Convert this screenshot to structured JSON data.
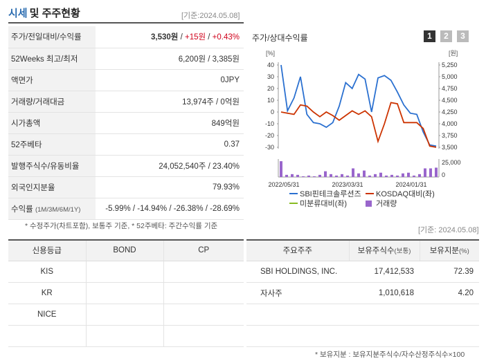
{
  "header": {
    "title_blue": "시세",
    "title_rest": "및 주주현황",
    "date": "[기준:2024.05.08]"
  },
  "price_table": {
    "price_label": "주가/전일대비/수익률",
    "price": "3,530원",
    "change": "+15원",
    "change_pct": "+0.43%",
    "week52_label": "52Weeks 최고/최저",
    "week52": "6,200원 / 3,385원",
    "par_label": "액면가",
    "par": "0JPY",
    "volume_label": "거래량/거래대금",
    "volume": "13,974주 / 0억원",
    "mcap_label": "시가총액",
    "mcap": "849억원",
    "beta_label": "52주베타",
    "beta": "0.37",
    "shares_label": "발행주식수/유동비율",
    "shares": "24,052,540주 / 23.40%",
    "foreign_label": "외국인지분율",
    "foreign": "79.93%",
    "return_label": "수익률",
    "return_sub": "(1M/3M/6M/1Y)",
    "r1m": "-5.99%",
    "r3m": "-14.94%",
    "r6m": "-26.38%",
    "r1y": "-28.69%",
    "sep": " / "
  },
  "note_left": "* 수정주가(차트포함), 보통주 기준, * 52주베타: 주간수익률 기준",
  "chart": {
    "title": "주가/상대수익률",
    "pages": [
      "1",
      "2",
      "3"
    ],
    "active_page": 0,
    "left_unit": "[%]",
    "right_unit": "[원]",
    "vol_label": "25,000",
    "vol_zero": "0",
    "legend": [
      "SBI핀테크솔루션즈",
      "KOSDAQ대비(좌)",
      "미분류대비(좌)",
      "거래량"
    ],
    "colors": {
      "stock": "#2a70d0",
      "kosdaq": "#cc3300",
      "sector": "#88bb22",
      "volume": "#9966cc"
    }
  },
  "chart_data": {
    "type": "line",
    "x_labels": [
      "2022/05/31",
      "2023/03/31",
      "2024/01/31"
    ],
    "left_axis": {
      "ticks": [
        40,
        30,
        20,
        10,
        0,
        -10,
        -20,
        -30
      ],
      "ylim": [
        -30,
        40
      ]
    },
    "right_axis": {
      "ticks": [
        "5,250",
        "5,000",
        "4,750",
        "4,500",
        "4,250",
        "4,000",
        "3,750",
        "3,500"
      ],
      "ylim": [
        3500,
        5250
      ]
    },
    "series": [
      {
        "name": "SBI핀테크솔루션즈",
        "values": [
          40,
          1,
          12,
          30,
          -2,
          -9,
          -10,
          -13,
          -9,
          5,
          25,
          20,
          32,
          28,
          0,
          29,
          31,
          27,
          17,
          6,
          -1,
          -2,
          -17,
          -28,
          -29
        ]
      },
      {
        "name": "KOSDAQ대비(좌)",
        "values": [
          0,
          -1,
          -2,
          6,
          5,
          0,
          -4,
          0,
          -3,
          -7,
          -3,
          1,
          -2,
          1,
          -4,
          -25,
          -10,
          8,
          7,
          -9,
          -9,
          -9,
          -14,
          -29,
          -30
        ]
      }
    ],
    "volume": [
      22000,
      3000,
      4000,
      3000,
      1000,
      2000,
      1000,
      3000,
      8000,
      4000,
      2000,
      4000,
      2000,
      12000,
      5000,
      9000,
      2000,
      4000,
      6000,
      2000,
      3000,
      2000,
      5000,
      6000,
      2000,
      4000,
      12000,
      12000,
      13000
    ]
  },
  "date2": "[기준: 2024.05.08]",
  "credit": {
    "headers": [
      "신용등급",
      "BOND",
      "CP"
    ],
    "rows": [
      [
        "KIS",
        "",
        ""
      ],
      [
        "KR",
        "",
        ""
      ],
      [
        "NICE",
        "",
        ""
      ],
      [
        "",
        "",
        ""
      ]
    ]
  },
  "holders": {
    "headers": [
      "주요주주",
      "보유주식수",
      "(보통)",
      "보유지분",
      "(%)"
    ],
    "rows": [
      [
        "SBI HOLDINGS, INC.",
        "17,412,533",
        "72.39"
      ],
      [
        "자사주",
        "1,010,618",
        "4.20"
      ],
      [
        "",
        "",
        ""
      ],
      [
        "",
        "",
        ""
      ]
    ]
  },
  "note_right": "* 보유지분 : 보유지분주식수/자수산정주식수×100"
}
